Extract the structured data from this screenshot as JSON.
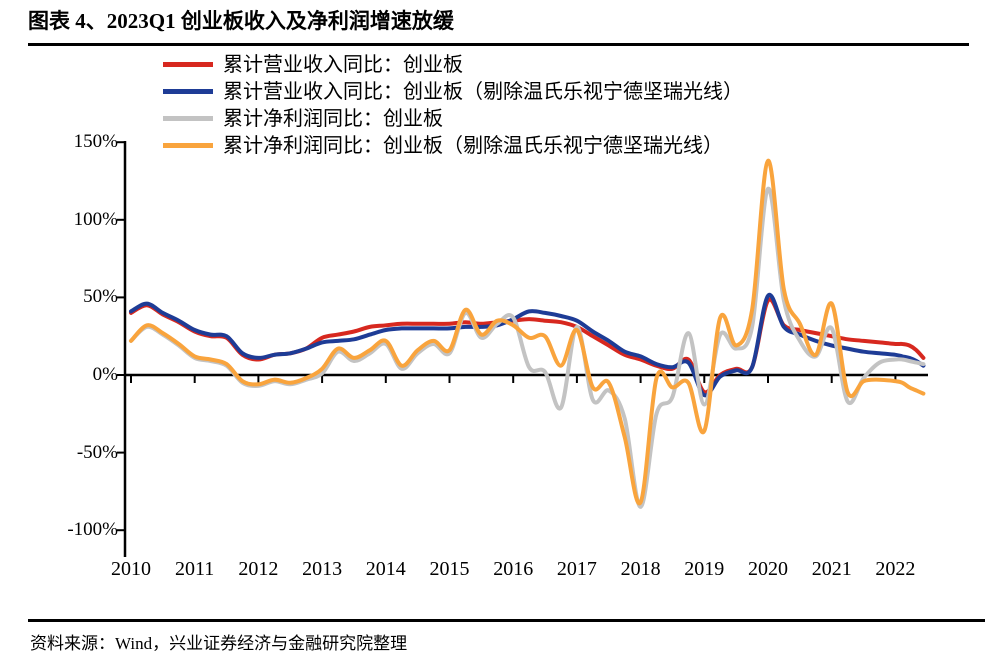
{
  "title": "图表 4、2023Q1 创业板收入及净利润增速放缓",
  "source": "资料来源：Wind，兴业证券经济与金融研究院整理",
  "chart_data": {
    "type": "line",
    "title": "2023Q1 创业板收入及净利润增速放缓",
    "legend_position": "top-left",
    "grid": false,
    "axis_color": "#000000",
    "ylim": [
      -100,
      150
    ],
    "y_tick_values": [
      150,
      100,
      50,
      0,
      -50,
      -100
    ],
    "y_tick_labels": [
      "150%",
      "100%",
      "50%",
      "0%",
      "-50%",
      "-100%"
    ],
    "x_tick_labels": [
      "2010",
      "2011",
      "2012",
      "2013",
      "2014",
      "2015",
      "2016",
      "2017",
      "2018",
      "2019",
      "2020",
      "2021",
      "2022"
    ],
    "x": [
      "2010Q1",
      "2010Q2",
      "2010Q3",
      "2010Q4",
      "2011Q1",
      "2011Q2",
      "2011Q3",
      "2011Q4",
      "2012Q1",
      "2012Q2",
      "2012Q3",
      "2012Q4",
      "2013Q1",
      "2013Q2",
      "2013Q3",
      "2013Q4",
      "2014Q1",
      "2014Q2",
      "2014Q3",
      "2014Q4",
      "2015Q1",
      "2015Q2",
      "2015Q3",
      "2015Q4",
      "2016Q1",
      "2016Q2",
      "2016Q3",
      "2016Q4",
      "2017Q1",
      "2017Q2",
      "2017Q3",
      "2017Q4",
      "2018Q1",
      "2018Q2",
      "2018Q3",
      "2018Q4",
      "2019Q1",
      "2019Q2",
      "2019Q3",
      "2019Q4",
      "2020Q1",
      "2020Q2",
      "2020Q3",
      "2020Q4",
      "2021Q1",
      "2021Q2",
      "2021Q3",
      "2021Q4",
      "2022Q1",
      "2022Q2",
      "2022Q3",
      "2022Q4",
      "2023Q1"
    ],
    "series": [
      {
        "name": "累计营业收入同比：创业板",
        "color": "#D7281F",
        "values": [
          40,
          45,
          39,
          34,
          28,
          25,
          24,
          13,
          10,
          13,
          14,
          17,
          24,
          26,
          28,
          31,
          32,
          33,
          33,
          33,
          33,
          34,
          33,
          34,
          35,
          36,
          35,
          34,
          31,
          25,
          19,
          13,
          10,
          6,
          4,
          10,
          -11,
          0,
          4,
          5,
          48,
          32,
          29,
          27,
          25,
          23,
          22,
          21,
          20,
          20,
          19,
          16,
          11
        ]
      },
      {
        "name": "累计营业收入同比：创业板（剔除温氏乐视宁德坚瑞光线）",
        "color": "#1E3C96",
        "values": [
          41,
          46,
          40,
          35,
          29,
          26,
          25,
          14,
          11,
          13,
          14,
          17,
          21,
          22,
          23,
          26,
          29,
          30,
          30,
          30,
          30,
          31,
          31,
          32,
          36,
          41,
          40,
          38,
          35,
          28,
          22,
          15,
          12,
          7,
          5,
          8,
          -13,
          -1,
          3,
          5,
          51,
          31,
          26,
          22,
          19,
          17,
          15,
          14,
          13,
          12,
          11,
          9,
          6
        ]
      },
      {
        "name": "累计净利润同比：创业板",
        "color": "#C3C3C3",
        "values": [
          22,
          31,
          26,
          19,
          11,
          9,
          6,
          -5,
          -7,
          -4,
          -6,
          -3,
          1,
          15,
          9,
          14,
          20,
          4,
          14,
          20,
          14,
          40,
          24,
          33,
          37,
          5,
          2,
          -21,
          31,
          -16,
          -10,
          -28,
          -85,
          -25,
          -14,
          27,
          -19,
          26,
          17,
          31,
          120,
          48,
          22,
          12,
          30,
          -17,
          -2,
          8,
          10,
          10,
          9,
          8,
          7
        ]
      },
      {
        "name": "累计净利润同比：创业板（剔除温氏乐视宁德坚瑞光线）",
        "color": "#F9A43D",
        "values": [
          22,
          32,
          27,
          20,
          12,
          10,
          7,
          -4,
          -6,
          -3,
          -5,
          -2,
          4,
          17,
          11,
          16,
          22,
          6,
          16,
          22,
          16,
          42,
          26,
          35,
          32,
          24,
          25,
          6,
          29,
          -8,
          -5,
          -40,
          -82,
          -2,
          -8,
          -5,
          -36,
          37,
          19,
          42,
          138,
          55,
          33,
          13,
          46,
          -11,
          -4,
          -3,
          -4,
          -5,
          -8,
          -10,
          -12
        ]
      }
    ]
  }
}
